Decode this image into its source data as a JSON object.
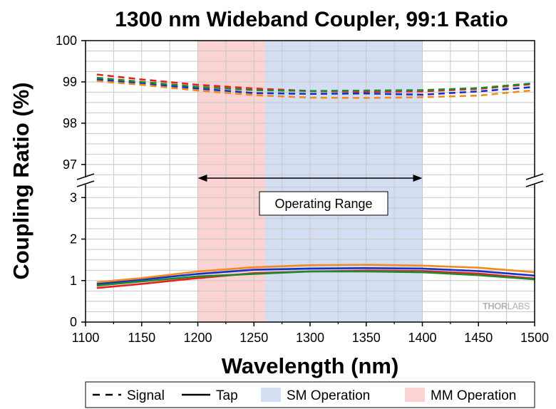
{
  "chart_data": {
    "type": "line",
    "title": "1300 nm Wideband Coupler, 99:1 Ratio",
    "xlabel": "Wavelength (nm)",
    "ylabel": "Coupling Ratio (%)",
    "xlim": [
      1100,
      1500
    ],
    "x_ticks": [
      "1100",
      "1150",
      "1200",
      "1250",
      "1300",
      "1350",
      "1400",
      "1450",
      "1500"
    ],
    "y_upper": {
      "ylim": [
        96.6,
        100
      ],
      "ticks": [
        "97",
        "98",
        "99",
        "100"
      ]
    },
    "y_lower": {
      "ylim": [
        0,
        3.4
      ],
      "ticks": [
        "0",
        "1",
        "2",
        "3"
      ]
    },
    "broken_axis": true,
    "grid": true,
    "shaded_regions": [
      {
        "name": "MM Operation",
        "x": [
          1200,
          1260
        ],
        "color": "#fbd3d3"
      },
      {
        "name": "SM Operation",
        "x": [
          1260,
          1400
        ],
        "color": "#d4def3"
      }
    ],
    "annotation": {
      "text": "Operating Range",
      "x": [
        1200,
        1400
      ]
    },
    "watermark": {
      "prefix": "THOR",
      "suffix": "LABS"
    },
    "series": [
      {
        "color": "#e8211f",
        "style": "dashed",
        "panel": "upper",
        "x": [
          1110,
          1150,
          1200,
          1250,
          1300,
          1350,
          1400,
          1450,
          1500
        ],
        "y": [
          99.18,
          99.06,
          98.93,
          98.84,
          98.78,
          98.76,
          98.77,
          98.83,
          98.95
        ]
      },
      {
        "color": "#1631c9",
        "style": "dashed",
        "panel": "upper",
        "x": [
          1110,
          1150,
          1200,
          1250,
          1300,
          1350,
          1400,
          1450,
          1500
        ],
        "y": [
          99.06,
          98.96,
          98.84,
          98.73,
          98.71,
          98.72,
          98.69,
          98.77,
          98.88
        ]
      },
      {
        "color": "#1e8a2c",
        "style": "dashed",
        "panel": "upper",
        "x": [
          1110,
          1150,
          1200,
          1250,
          1300,
          1350,
          1400,
          1450,
          1500
        ],
        "y": [
          99.1,
          99.0,
          98.88,
          98.8,
          98.78,
          98.79,
          98.8,
          98.85,
          98.97
        ]
      },
      {
        "color": "#f28b1b",
        "style": "dashed",
        "panel": "upper",
        "x": [
          1110,
          1150,
          1200,
          1250,
          1300,
          1350,
          1400,
          1450,
          1500
        ],
        "y": [
          99.02,
          98.93,
          98.79,
          98.68,
          98.62,
          98.61,
          98.63,
          98.67,
          98.8
        ]
      },
      {
        "color": "#e8211f",
        "style": "solid",
        "panel": "lower",
        "x": [
          1110,
          1150,
          1200,
          1250,
          1300,
          1350,
          1400,
          1450,
          1500
        ],
        "y": [
          0.82,
          0.92,
          1.06,
          1.18,
          1.22,
          1.24,
          1.23,
          1.17,
          1.05
        ]
      },
      {
        "color": "#1631c9",
        "style": "solid",
        "panel": "lower",
        "x": [
          1110,
          1150,
          1200,
          1250,
          1300,
          1350,
          1400,
          1450,
          1500
        ],
        "y": [
          0.92,
          1.02,
          1.16,
          1.26,
          1.29,
          1.3,
          1.29,
          1.23,
          1.12
        ]
      },
      {
        "color": "#1e8a2c",
        "style": "solid",
        "panel": "lower",
        "x": [
          1110,
          1150,
          1200,
          1250,
          1300,
          1350,
          1400,
          1450,
          1500
        ],
        "y": [
          0.88,
          0.98,
          1.1,
          1.16,
          1.22,
          1.22,
          1.2,
          1.13,
          1.03
        ]
      },
      {
        "color": "#f28b1b",
        "style": "solid",
        "panel": "lower",
        "x": [
          1110,
          1150,
          1200,
          1250,
          1300,
          1350,
          1400,
          1450,
          1500
        ],
        "y": [
          0.96,
          1.06,
          1.22,
          1.32,
          1.37,
          1.38,
          1.36,
          1.31,
          1.2
        ]
      }
    ],
    "legend": {
      "placement": "bottom",
      "entries": [
        {
          "label": "Signal",
          "kind": "dashed-line",
          "color": "#000000"
        },
        {
          "label": "Tap",
          "kind": "solid-line",
          "color": "#000000"
        },
        {
          "label": "SM Operation",
          "kind": "swatch",
          "color": "#d4def3"
        },
        {
          "label": "MM Operation",
          "kind": "swatch",
          "color": "#fbd3d3"
        }
      ]
    }
  }
}
